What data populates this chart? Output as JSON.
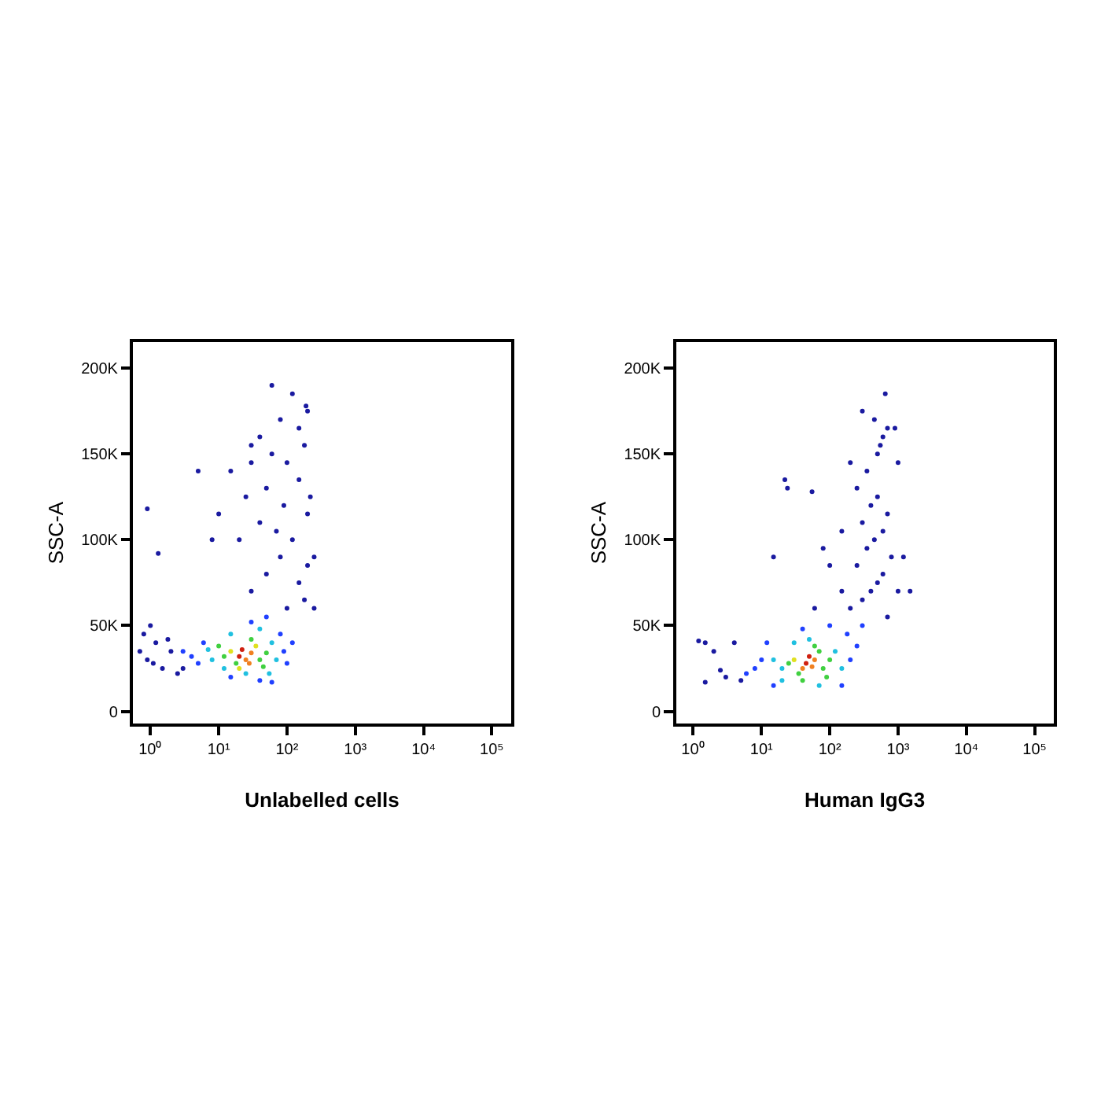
{
  "chart_data": [
    {
      "type": "scatter",
      "xlabel": "Unlabelled cells",
      "ylabel": "SSC-A",
      "log": "x",
      "marker": "circle",
      "xlim": [
        0.56,
        190000
      ],
      "ylim": [
        -7000,
        215000
      ],
      "xticks": [
        {
          "value": 1,
          "label": "10⁰"
        },
        {
          "value": 10,
          "label": "10¹"
        },
        {
          "value": 100,
          "label": "10²"
        },
        {
          "value": 1000,
          "label": "10³"
        },
        {
          "value": 10000,
          "label": "10⁴"
        },
        {
          "value": 100000,
          "label": "10⁵"
        }
      ],
      "yticks": [
        0,
        {
          "value": 50000,
          "label": "50K"
        },
        {
          "value": 100000,
          "label": "100K"
        },
        {
          "value": 150000,
          "label": "150K"
        },
        {
          "value": 200000,
          "label": "200K"
        }
      ],
      "x": [
        20,
        25,
        30,
        22,
        28,
        15,
        35,
        40,
        18,
        12,
        50,
        30,
        20,
        45,
        10,
        8,
        60,
        15,
        70,
        25,
        40,
        7,
        12,
        55,
        5,
        6,
        4,
        90,
        80,
        30,
        50,
        100,
        15,
        40,
        60,
        3,
        120,
        1.2,
        0.9,
        1.5,
        0.8,
        2,
        1.1,
        2.5,
        0.7,
        1.8,
        3,
        1,
        0.9,
        1.3,
        30,
        50,
        80,
        150,
        200,
        250,
        20,
        40,
        70,
        120,
        200,
        25,
        50,
        90,
        150,
        220,
        30,
        60,
        100,
        180,
        40,
        80,
        150,
        200,
        120,
        60,
        190,
        15,
        10,
        8,
        5,
        250,
        180,
        100,
        30
      ],
      "values": [
        32000,
        30000,
        34000,
        36000,
        28000,
        35000,
        38000,
        30000,
        28000,
        32000,
        34000,
        42000,
        25000,
        26000,
        38000,
        30000,
        40000,
        45000,
        30000,
        22000,
        48000,
        36000,
        25000,
        22000,
        28000,
        40000,
        32000,
        35000,
        45000,
        52000,
        55000,
        28000,
        20000,
        18000,
        17000,
        35000,
        40000,
        40000,
        30000,
        25000,
        45000,
        35000,
        28000,
        22000,
        35000,
        42000,
        25000,
        50000,
        118000,
        92000,
        70000,
        80000,
        90000,
        75000,
        85000,
        90000,
        100000,
        110000,
        105000,
        100000,
        115000,
        125000,
        130000,
        120000,
        135000,
        125000,
        145000,
        150000,
        145000,
        155000,
        160000,
        170000,
        165000,
        175000,
        185000,
        190000,
        178000,
        140000,
        115000,
        100000,
        140000,
        60000,
        65000,
        60000,
        155000
      ],
      "colors": [
        "#d02010",
        "#f08020",
        "#f08020",
        "#d02010",
        "#f08020",
        "#e0e020",
        "#e0e020",
        "#40d040",
        "#40d040",
        "#40d040",
        "#40d040",
        "#40d040",
        "#e0e020",
        "#40d040",
        "#40d040",
        "#20c0e0",
        "#20c0e0",
        "#20c0e0",
        "#20c0e0",
        "#20c0e0",
        "#20c0e0",
        "#20c0e0",
        "#20c0e0",
        "#20c0e0",
        "#2040ff",
        "#2040ff",
        "#2040ff",
        "#2040ff",
        "#2040ff",
        "#2040ff",
        "#2040ff",
        "#2040ff",
        "#2040ff",
        "#2040ff",
        "#2040ff",
        "#2040ff",
        "#2040ff",
        "#1a1aa0",
        "#1a1aa0",
        "#1a1aa0",
        "#1a1aa0",
        "#1a1aa0",
        "#1a1aa0",
        "#1a1aa0",
        "#1a1aa0",
        "#1a1aa0",
        "#1a1aa0",
        "#1a1aa0",
        "#1a1aa0",
        "#1a1aa0",
        "#1a1aa0",
        "#1a1aa0",
        "#1a1aa0",
        "#1a1aa0",
        "#1a1aa0",
        "#1a1aa0",
        "#1a1aa0",
        "#1a1aa0",
        "#1a1aa0",
        "#1a1aa0",
        "#1a1aa0",
        "#1a1aa0",
        "#1a1aa0",
        "#1a1aa0",
        "#1a1aa0",
        "#1a1aa0",
        "#1a1aa0",
        "#1a1aa0",
        "#1a1aa0",
        "#1a1aa0",
        "#1a1aa0",
        "#1a1aa0",
        "#1a1aa0",
        "#1a1aa0",
        "#1a1aa0",
        "#1a1aa0",
        "#1a1aa0",
        "#1a1aa0",
        "#1a1aa0",
        "#1a1aa0",
        "#1a1aa0",
        "#1a1aa0",
        "#1a1aa0",
        "#1a1aa0",
        "#1a1aa0"
      ]
    },
    {
      "type": "scatter",
      "xlabel": "Human IgG3",
      "ylabel": "SSC-A",
      "log": "x",
      "marker": "circle",
      "xlim": [
        0.56,
        190000
      ],
      "ylim": [
        -7000,
        215000
      ],
      "xticks": [
        {
          "value": 1,
          "label": "10⁰"
        },
        {
          "value": 10,
          "label": "10¹"
        },
        {
          "value": 100,
          "label": "10²"
        },
        {
          "value": 1000,
          "label": "10³"
        },
        {
          "value": 10000,
          "label": "10⁴"
        },
        {
          "value": 100000,
          "label": "10⁵"
        }
      ],
      "yticks": [
        0,
        {
          "value": 50000,
          "label": "50K"
        },
        {
          "value": 100000,
          "label": "100K"
        },
        {
          "value": 150000,
          "label": "150K"
        },
        {
          "value": 200000,
          "label": "200K"
        }
      ],
      "x": [
        45,
        55,
        50,
        60,
        40,
        30,
        70,
        80,
        35,
        25,
        100,
        60,
        40,
        90,
        20,
        120,
        15,
        50,
        150,
        30,
        70,
        20,
        10,
        8,
        200,
        180,
        40,
        100,
        12,
        250,
        15,
        150,
        6,
        300,
        3,
        2,
        1.5,
        1.5,
        5,
        4,
        2.5,
        1.2,
        22,
        24,
        15,
        55,
        200,
        300,
        400,
        500,
        600,
        150,
        250,
        350,
        450,
        600,
        800,
        300,
        400,
        500,
        700,
        250,
        350,
        500,
        600,
        450,
        700,
        650,
        550,
        900,
        1000,
        1200,
        1000,
        150,
        100,
        80,
        200,
        300,
        1500,
        700,
        60
      ],
      "values": [
        28000,
        26000,
        32000,
        30000,
        25000,
        30000,
        35000,
        25000,
        22000,
        28000,
        30000,
        38000,
        18000,
        20000,
        25000,
        35000,
        30000,
        42000,
        25000,
        40000,
        15000,
        18000,
        30000,
        25000,
        30000,
        45000,
        48000,
        50000,
        40000,
        38000,
        15000,
        15000,
        22000,
        50000,
        20000,
        35000,
        40000,
        17000,
        18000,
        40000,
        24000,
        41000,
        135000,
        130000,
        90000,
        128000,
        60000,
        65000,
        70000,
        75000,
        80000,
        70000,
        85000,
        95000,
        100000,
        105000,
        90000,
        110000,
        120000,
        125000,
        115000,
        130000,
        140000,
        150000,
        160000,
        170000,
        165000,
        185000,
        155000,
        165000,
        145000,
        90000,
        70000,
        105000,
        85000,
        95000,
        145000,
        175000,
        70000,
        55000,
        60000
      ],
      "colors": [
        "#d02010",
        "#f08020",
        "#d02010",
        "#f08020",
        "#f08020",
        "#e0e020",
        "#40d040",
        "#40d040",
        "#40d040",
        "#40d040",
        "#40d040",
        "#40d040",
        "#40d040",
        "#40d040",
        "#20c0e0",
        "#20c0e0",
        "#20c0e0",
        "#20c0e0",
        "#20c0e0",
        "#20c0e0",
        "#20c0e0",
        "#20c0e0",
        "#2040ff",
        "#2040ff",
        "#2040ff",
        "#2040ff",
        "#2040ff",
        "#2040ff",
        "#2040ff",
        "#2040ff",
        "#2040ff",
        "#2040ff",
        "#2040ff",
        "#2040ff",
        "#1a1aa0",
        "#1a1aa0",
        "#1a1aa0",
        "#1a1aa0",
        "#1a1aa0",
        "#1a1aa0",
        "#1a1aa0",
        "#1a1aa0",
        "#1a1aa0",
        "#1a1aa0",
        "#1a1aa0",
        "#1a1aa0",
        "#1a1aa0",
        "#1a1aa0",
        "#1a1aa0",
        "#1a1aa0",
        "#1a1aa0",
        "#1a1aa0",
        "#1a1aa0",
        "#1a1aa0",
        "#1a1aa0",
        "#1a1aa0",
        "#1a1aa0",
        "#1a1aa0",
        "#1a1aa0",
        "#1a1aa0",
        "#1a1aa0",
        "#1a1aa0",
        "#1a1aa0",
        "#1a1aa0",
        "#1a1aa0",
        "#1a1aa0",
        "#1a1aa0",
        "#1a1aa0",
        "#1a1aa0",
        "#1a1aa0",
        "#1a1aa0",
        "#1a1aa0",
        "#1a1aa0",
        "#1a1aa0",
        "#1a1aa0",
        "#1a1aa0",
        "#1a1aa0",
        "#1a1aa0",
        "#1a1aa0",
        "#1a1aa0",
        "#1a1aa0"
      ]
    }
  ]
}
